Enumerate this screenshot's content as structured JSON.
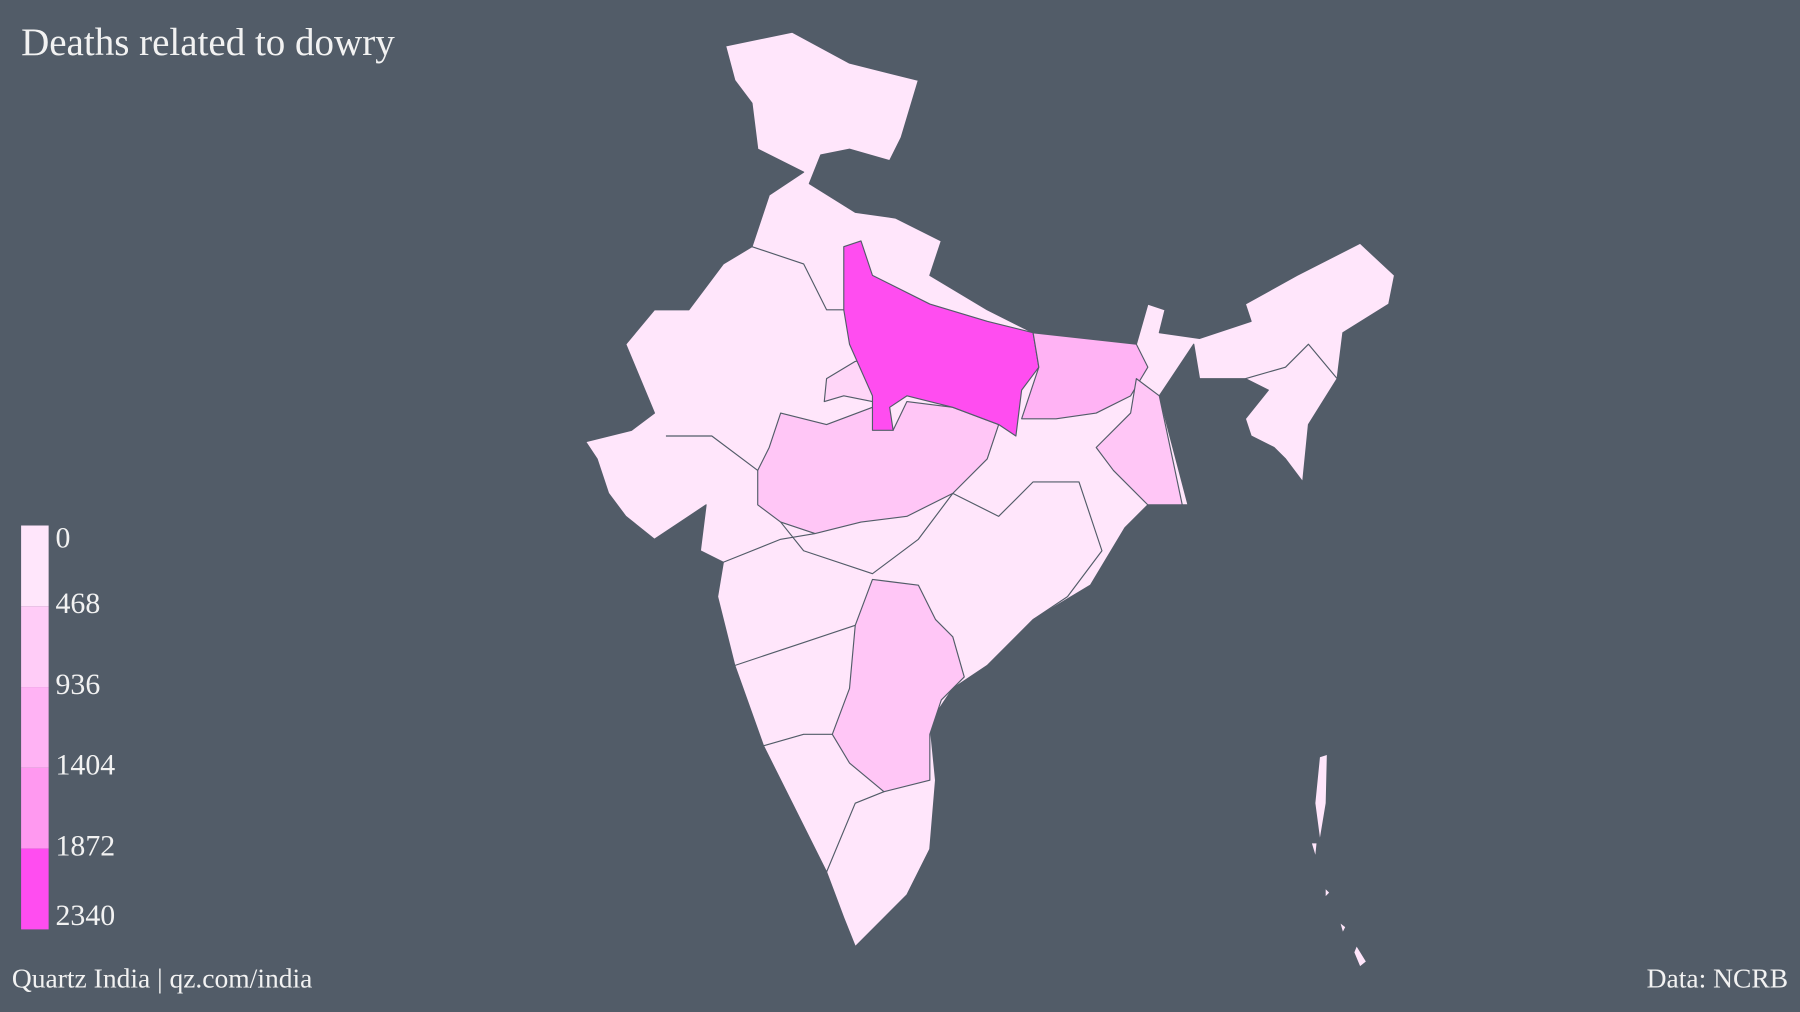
{
  "chart_data": {
    "type": "map",
    "title": "Deaths related to dowry",
    "credit": "Quartz India | qz.com/india",
    "source": "Data: NCRB",
    "legend": {
      "lim": [
        0,
        2340
      ],
      "ticks": [
        0,
        468,
        936,
        1404,
        1872,
        2340
      ],
      "colors": [
        "#ffe6fb",
        "#ffccf7",
        "#ffb3f4",
        "#ff99f0",
        "#ff4df0"
      ]
    }
  }
}
